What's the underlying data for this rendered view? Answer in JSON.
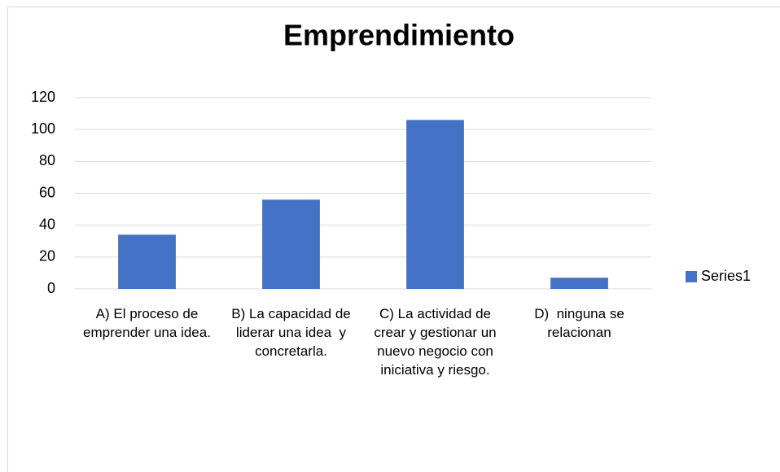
{
  "chart_data": {
    "type": "bar",
    "title": "Emprendimiento",
    "categories": [
      "A) El proceso de emprender una idea.",
      "B) La capacidad de liderar una idea  y concretarla.",
      "C) La actividad de crear y gestionar un nuevo negocio con iniciativa y riesgo.",
      "D)  ninguna se relacionan"
    ],
    "series": [
      {
        "name": "Series1",
        "color": "#4472c4",
        "values": [
          34,
          56,
          106,
          7
        ]
      }
    ],
    "ylim": [
      0,
      120
    ],
    "yticks": [
      0,
      20,
      40,
      60,
      80,
      100,
      120
    ],
    "grid": true,
    "legend": "right"
  }
}
